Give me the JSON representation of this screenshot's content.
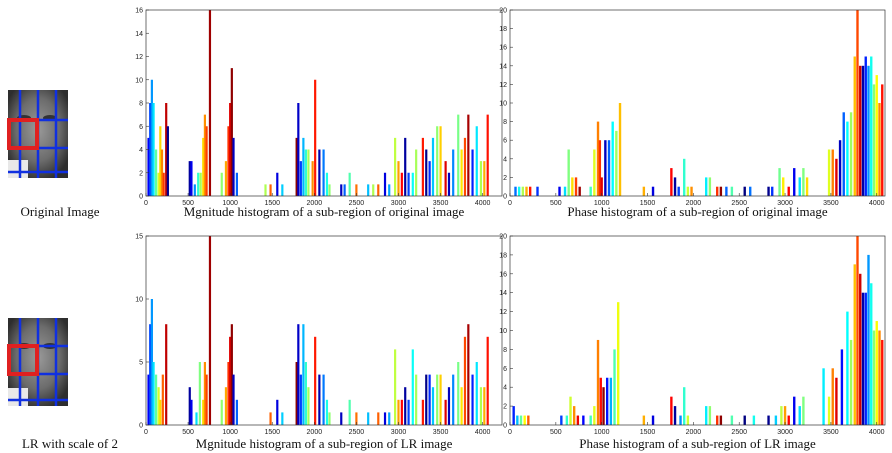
{
  "images": [
    {
      "caption": "Original Image"
    },
    {
      "caption": "LR with scale of 2"
    }
  ],
  "chart_data": [
    {
      "type": "bar",
      "caption": "Mgnitude histogram of a sub-region of original image",
      "colormap": "jet",
      "x": [
        30,
        50,
        70,
        90,
        120,
        150,
        170,
        190,
        210,
        240,
        260,
        520,
        540,
        580,
        620,
        650,
        680,
        700,
        720,
        760,
        900,
        950,
        980,
        1000,
        1020,
        1040,
        1080,
        1420,
        1480,
        1560,
        1620,
        1790,
        1810,
        1840,
        1870,
        1900,
        1930,
        1980,
        2010,
        2060,
        2110,
        2150,
        2180,
        2320,
        2360,
        2420,
        2500,
        2640,
        2700,
        2760,
        2840,
        2890,
        2960,
        3000,
        3040,
        3080,
        3120,
        3170,
        3210,
        3290,
        3330,
        3370,
        3410,
        3460,
        3500,
        3560,
        3600,
        3650,
        3710,
        3750,
        3790,
        3830,
        3880,
        3930,
        3980,
        4020,
        4060
      ],
      "values": [
        5,
        8,
        10,
        8,
        4,
        2,
        6,
        4,
        2,
        8,
        6,
        3,
        3,
        1,
        2,
        2,
        5,
        7,
        6,
        16,
        2,
        3,
        6,
        8,
        11,
        5,
        2,
        1,
        1,
        2,
        1,
        5,
        8,
        3,
        5,
        4,
        4,
        3,
        10,
        4,
        4,
        2,
        1,
        1,
        1,
        2,
        1,
        1,
        1,
        1,
        2,
        1,
        5,
        3,
        2,
        5,
        2,
        2,
        4,
        5,
        4,
        3,
        5,
        6,
        6,
        3,
        2,
        4,
        7,
        4,
        5,
        7,
        4,
        6,
        3,
        3,
        7
      ],
      "xlim": [
        0,
        4230
      ],
      "xticks": [
        0,
        500,
        1000,
        1500,
        2000,
        2500,
        3000,
        3500,
        4000
      ],
      "ylim": [
        0,
        16
      ],
      "yticks": [
        0,
        2,
        4,
        6,
        8,
        10,
        12,
        14,
        16
      ]
    },
    {
      "type": "bar",
      "caption": "Phase histogram of a sub-region of original image",
      "colormap": "jet",
      "x": [
        60,
        100,
        140,
        180,
        220,
        300,
        540,
        600,
        640,
        680,
        720,
        760,
        880,
        920,
        960,
        980,
        1000,
        1040,
        1080,
        1120,
        1160,
        1200,
        1460,
        1560,
        1760,
        1800,
        1840,
        1900,
        1940,
        1980,
        2140,
        2180,
        2260,
        2300,
        2360,
        2420,
        2560,
        2620,
        2820,
        2860,
        2940,
        2980,
        3040,
        3100,
        3160,
        3200,
        3240,
        3480,
        3520,
        3560,
        3600,
        3640,
        3680,
        3720,
        3760,
        3790,
        3820,
        3850,
        3880,
        3910,
        3940,
        3970,
        4000,
        4030,
        4060
      ],
      "values": [
        1,
        1,
        1,
        1,
        1,
        1,
        1,
        1,
        5,
        2,
        2,
        1,
        1,
        5,
        8,
        6,
        2,
        6,
        6,
        8,
        7,
        10,
        1,
        1,
        3,
        2,
        1,
        4,
        1,
        1,
        2,
        2,
        1,
        1,
        1,
        1,
        1,
        1,
        1,
        1,
        3,
        2,
        1,
        3,
        2,
        3,
        2,
        5,
        5,
        4,
        6,
        9,
        8,
        9,
        15,
        20,
        14,
        14,
        15,
        14,
        15,
        12,
        13,
        10,
        12
      ],
      "xlim": [
        0,
        4090
      ],
      "xticks": [
        0,
        500,
        1000,
        1500,
        2000,
        2500,
        3000,
        3500,
        4000
      ],
      "ylim": [
        0,
        20
      ],
      "yticks": [
        0,
        2,
        4,
        6,
        8,
        10,
        12,
        14,
        16,
        18,
        20
      ]
    },
    {
      "type": "bar",
      "caption": "Mgnitude histogram of a sub-region of LR image",
      "colormap": "jet",
      "x": [
        30,
        50,
        70,
        90,
        120,
        150,
        170,
        200,
        240,
        520,
        540,
        600,
        640,
        680,
        700,
        720,
        760,
        900,
        950,
        980,
        1000,
        1020,
        1040,
        1080,
        1480,
        1560,
        1620,
        1790,
        1810,
        1840,
        1870,
        1900,
        1930,
        2010,
        2060,
        2110,
        2150,
        2180,
        2320,
        2420,
        2500,
        2640,
        2760,
        2840,
        2890,
        2960,
        3000,
        3040,
        3080,
        3120,
        3170,
        3210,
        3290,
        3330,
        3370,
        3410,
        3460,
        3500,
        3560,
        3600,
        3650,
        3710,
        3750,
        3790,
        3830,
        3880,
        3930,
        3980,
        4020,
        4060
      ],
      "values": [
        4,
        8,
        10,
        5,
        4,
        3,
        2,
        4,
        8,
        3,
        2,
        1,
        5,
        2,
        5,
        4,
        15,
        2,
        3,
        5,
        7,
        8,
        4,
        2,
        1,
        2,
        1,
        5,
        8,
        4,
        8,
        5,
        3,
        7,
        4,
        4,
        2,
        1,
        1,
        2,
        1,
        1,
        1,
        1,
        1,
        6,
        2,
        2,
        3,
        2,
        6,
        4,
        2,
        4,
        4,
        3,
        4,
        4,
        2,
        3,
        4,
        5,
        3,
        7,
        8,
        4,
        5,
        3,
        3,
        7
      ],
      "xlim": [
        0,
        4230
      ],
      "xticks": [
        0,
        500,
        1000,
        1500,
        2000,
        2500,
        3000,
        3500,
        4000
      ],
      "ylim": [
        0,
        15
      ],
      "yticks": [
        0,
        5,
        10,
        15
      ]
    },
    {
      "type": "bar",
      "caption": "Phase histogram of a sub-region of LR image",
      "colormap": "jet",
      "x": [
        40,
        80,
        120,
        160,
        200,
        560,
        620,
        660,
        700,
        740,
        800,
        880,
        920,
        960,
        990,
        1020,
        1060,
        1100,
        1140,
        1180,
        1460,
        1560,
        1760,
        1800,
        1860,
        1900,
        1940,
        2140,
        2180,
        2260,
        2300,
        2420,
        2560,
        2660,
        2820,
        2900,
        2960,
        3000,
        3040,
        3100,
        3160,
        3200,
        3420,
        3480,
        3520,
        3560,
        3620,
        3680,
        3720,
        3760,
        3790,
        3820,
        3850,
        3880,
        3910,
        3940,
        3970,
        4000,
        4030,
        4060
      ],
      "values": [
        2,
        1,
        1,
        1,
        1,
        1,
        1,
        3,
        2,
        1,
        1,
        1,
        2,
        9,
        5,
        4,
        5,
        5,
        8,
        13,
        1,
        1,
        3,
        2,
        1,
        4,
        1,
        2,
        2,
        1,
        1,
        1,
        1,
        1,
        1,
        1,
        2,
        2,
        1,
        3,
        2,
        3,
        6,
        3,
        6,
        5,
        8,
        12,
        9,
        17,
        20,
        16,
        14,
        14,
        18,
        15,
        10,
        11,
        10,
        9
      ],
      "xlim": [
        0,
        4090
      ],
      "xticks": [
        0,
        500,
        1000,
        1500,
        2000,
        2500,
        3000,
        3500,
        4000
      ],
      "ylim": [
        0,
        20
      ],
      "yticks": [
        0,
        2,
        4,
        6,
        8,
        10,
        12,
        14,
        16,
        18,
        20
      ]
    }
  ]
}
